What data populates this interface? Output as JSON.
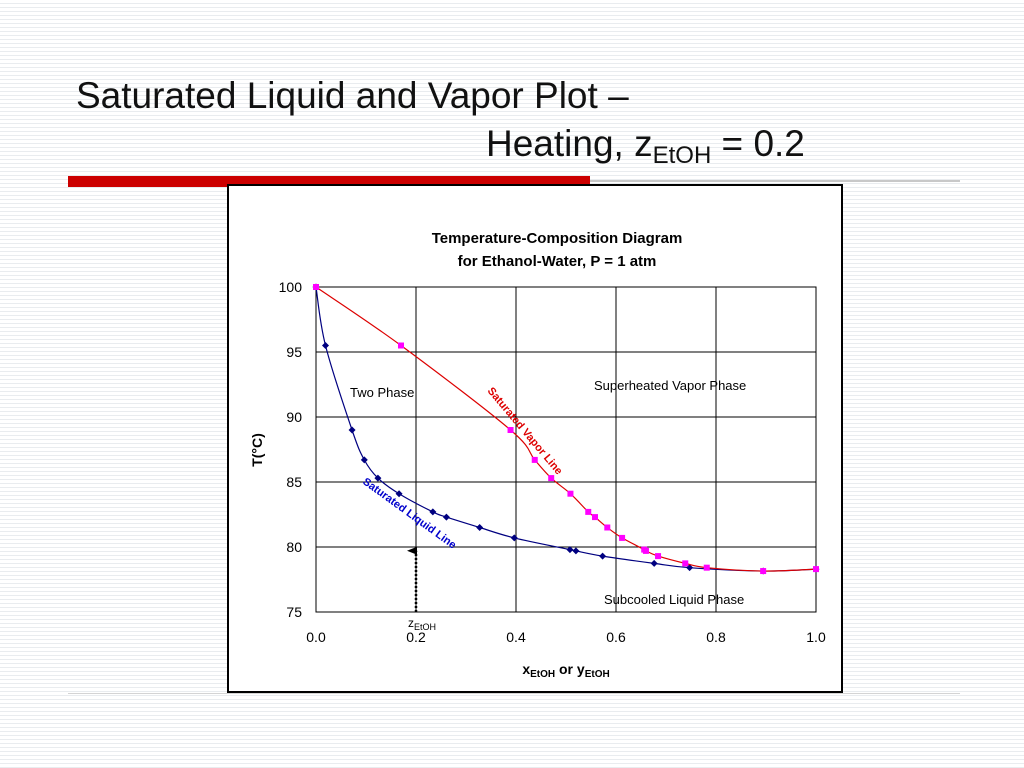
{
  "slide": {
    "title_line1": "Saturated Liquid and Vapor Plot –",
    "title_line2_prefix": "Heating, z",
    "title_line2_sub": "EtOH",
    "title_line2_suffix": " = 0.2"
  },
  "chart_data": {
    "type": "line",
    "title_lines": [
      "Temperature-Composition Diagram",
      "for Ethanol-Water, P = 1 atm"
    ],
    "xlabel_main": "x",
    "xlabel_sub1": "EtOH",
    "xlabel_mid": " or y",
    "xlabel_sub2": "EtOH",
    "ylabel": "T(°C)",
    "xlim": [
      0.0,
      1.0
    ],
    "ylim": [
      75,
      100
    ],
    "xticks": [
      "0.0",
      "0.2",
      "0.4",
      "0.6",
      "0.8",
      "1.0"
    ],
    "yticks": [
      "75",
      "80",
      "85",
      "90",
      "95",
      "100"
    ],
    "grid": true,
    "series": [
      {
        "name": "Saturated Liquid Line",
        "color": "#000080",
        "marker": "diamond",
        "points": [
          [
            0.0,
            100.0
          ],
          [
            0.019,
            95.5
          ],
          [
            0.0721,
            89.0
          ],
          [
            0.0966,
            86.7
          ],
          [
            0.1238,
            85.3
          ],
          [
            0.1661,
            84.1
          ],
          [
            0.2337,
            82.7
          ],
          [
            0.2608,
            82.3
          ],
          [
            0.3273,
            81.5
          ],
          [
            0.3965,
            80.7
          ],
          [
            0.5079,
            79.8
          ],
          [
            0.5198,
            79.7
          ],
          [
            0.5732,
            79.3
          ],
          [
            0.6763,
            78.74
          ],
          [
            0.7472,
            78.41
          ],
          [
            0.8943,
            78.15
          ],
          [
            1.0,
            78.3
          ]
        ]
      },
      {
        "name": "Saturated Vapor Line",
        "color": "#dd0000",
        "marker": "square",
        "marker_color": "#ff00ff",
        "points": [
          [
            0.0,
            100.0
          ],
          [
            0.17,
            95.5
          ],
          [
            0.3891,
            89.0
          ],
          [
            0.4375,
            86.7
          ],
          [
            0.4704,
            85.3
          ],
          [
            0.5089,
            84.1
          ],
          [
            0.5445,
            82.7
          ],
          [
            0.558,
            82.3
          ],
          [
            0.5826,
            81.5
          ],
          [
            0.6122,
            80.7
          ],
          [
            0.6564,
            79.8
          ],
          [
            0.6599,
            79.7
          ],
          [
            0.6841,
            79.3
          ],
          [
            0.7385,
            78.74
          ],
          [
            0.7815,
            78.41
          ],
          [
            0.8943,
            78.15
          ],
          [
            1.0,
            78.3
          ]
        ]
      }
    ],
    "annotations": {
      "two_phase": "Two Phase",
      "superheated": "Superheated Vapor Phase",
      "subcooled": "Subcooled Liquid Phase",
      "sat_vapor": "Saturated Vapor Line",
      "sat_liquid": "Saturated Liquid Line",
      "z_main": "z",
      "z_sub": "EtOH",
      "z_value": 0.2,
      "z_arrow_from_t": 75,
      "z_arrow_to_t": 80.4
    }
  }
}
